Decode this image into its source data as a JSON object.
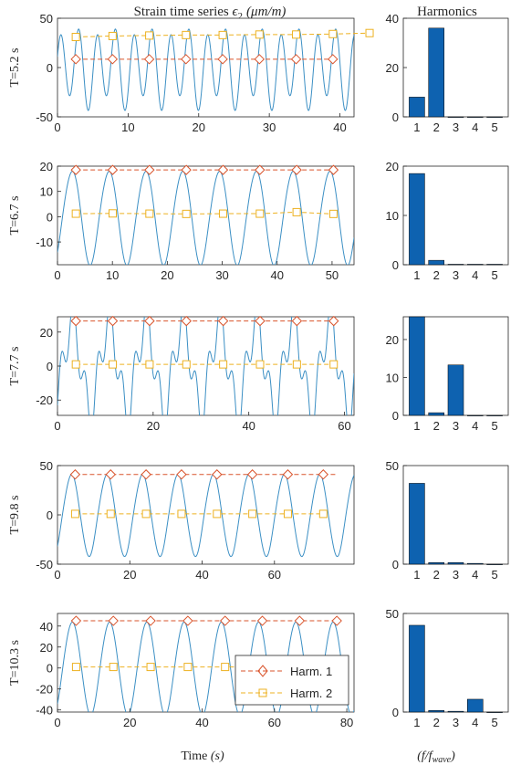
{
  "figure": {
    "left_title_prefix": "Strain time series ",
    "left_title_symbol": "ϵ",
    "left_title_sub": "2",
    "left_title_unit": "(μm/m)",
    "right_title": "Harmonics",
    "x_label_main": "Time ",
    "x_label_unit": "(s)",
    "right_x_label_main": "(f/f",
    "right_x_label_sub": "wave",
    "right_x_label_end": ")",
    "legend": [
      "Harm. 1",
      "Harm. 2"
    ]
  },
  "colors": {
    "signal": "#3b8fc4",
    "harm1": "#d9532b",
    "harm2": "#edb120",
    "bar": "#0e62b0",
    "axis": "#262626",
    "grid": "#dcdcdc"
  },
  "chart_data": [
    {
      "type": "line",
      "row_label": "T=5.2 s",
      "period": 5.2,
      "xlim": [
        0,
        42
      ],
      "ylim": [
        -50,
        50
      ],
      "xticks": [
        0,
        10,
        20,
        30,
        40
      ],
      "yticks": [
        -50,
        0,
        50
      ],
      "harm1": {
        "start": 2.6,
        "step": 5.2,
        "value": 8.5
      },
      "harm2": {
        "start": 2.6,
        "step": 5.2,
        "values": [
          31,
          32,
          32.5,
          33,
          33,
          33.5,
          33.5,
          34,
          35
        ]
      }
    },
    {
      "type": "bar",
      "categories": [
        1,
        2,
        3,
        4,
        5
      ],
      "values": [
        8,
        36,
        0,
        0,
        0
      ],
      "ylim": [
        0,
        40
      ],
      "yticks": [
        0,
        20,
        40
      ]
    },
    {
      "type": "line",
      "row_label": "T=6.7 s",
      "period": 6.7,
      "xlim": [
        0,
        54
      ],
      "ylim": [
        -19,
        20
      ],
      "xticks": [
        0,
        10,
        20,
        30,
        40,
        50
      ],
      "yticks": [
        -10,
        0,
        10,
        20
      ],
      "harm1": {
        "start": 3.35,
        "step": 6.7,
        "value": 18.5
      },
      "harm2": {
        "start": 3.35,
        "step": 6.7,
        "values": [
          1.2,
          1.3,
          1.2,
          1.1,
          1.2,
          1.2,
          1.8,
          1.1
        ]
      }
    },
    {
      "type": "bar",
      "categories": [
        1,
        2,
        3,
        4,
        5
      ],
      "values": [
        18.5,
        0.9,
        0.1,
        0.1,
        0.1
      ],
      "ylim": [
        0,
        20
      ],
      "yticks": [
        0,
        10,
        20
      ]
    },
    {
      "type": "line",
      "row_label": "T=7.7 s",
      "period": 7.7,
      "xlim": [
        0,
        62
      ],
      "ylim": [
        -29,
        29
      ],
      "xticks": [
        0,
        20,
        40,
        60
      ],
      "yticks": [
        -20,
        0,
        20
      ],
      "harm1": {
        "start": 3.85,
        "step": 7.7,
        "value": 26.5
      },
      "harm2": {
        "start": 3.85,
        "step": 7.7,
        "values": [
          1,
          1,
          1,
          1,
          1,
          1,
          1,
          1
        ]
      }
    },
    {
      "type": "bar",
      "categories": [
        1,
        2,
        3,
        4,
        5
      ],
      "values": [
        26.5,
        0.7,
        13.3,
        0,
        0
      ],
      "ylim": [
        0,
        26
      ],
      "yticks": [
        0,
        10,
        20
      ]
    },
    {
      "type": "line",
      "row_label": "T=9.8 s",
      "period": 9.8,
      "xlim": [
        0,
        82
      ],
      "ylim": [
        -50,
        50
      ],
      "xticks": [
        0,
        20,
        40,
        60
      ],
      "yticks": [
        -50,
        0,
        50
      ],
      "harm1": {
        "start": 4.9,
        "step": 9.8,
        "value": 41
      },
      "harm2": {
        "start": 4.9,
        "step": 9.8,
        "values": [
          1,
          1,
          1,
          1,
          1,
          1,
          1,
          1
        ]
      }
    },
    {
      "type": "bar",
      "categories": [
        1,
        2,
        3,
        4,
        5
      ],
      "values": [
        41,
        0.8,
        0.8,
        0.4,
        0
      ],
      "ylim": [
        0,
        50
      ],
      "yticks": [
        0,
        50
      ]
    },
    {
      "type": "line",
      "row_label": "T=10.3 s",
      "period": 10.3,
      "xlim": [
        0,
        82
      ],
      "ylim": [
        -42,
        52
      ],
      "xticks": [
        0,
        20,
        40,
        60,
        80
      ],
      "yticks": [
        -40,
        -20,
        0,
        20,
        40
      ],
      "harm1": {
        "start": 5.15,
        "step": 10.3,
        "value": 45
      },
      "harm2": {
        "start": 5.15,
        "step": 10.3,
        "values": [
          1,
          1,
          1,
          1,
          1,
          1,
          1,
          1
        ]
      }
    },
    {
      "type": "bar",
      "categories": [
        1,
        2,
        3,
        4,
        5
      ],
      "values": [
        44,
        0.8,
        0.4,
        6.5,
        0
      ],
      "ylim": [
        0,
        50
      ],
      "yticks": [
        0,
        50
      ]
    }
  ]
}
